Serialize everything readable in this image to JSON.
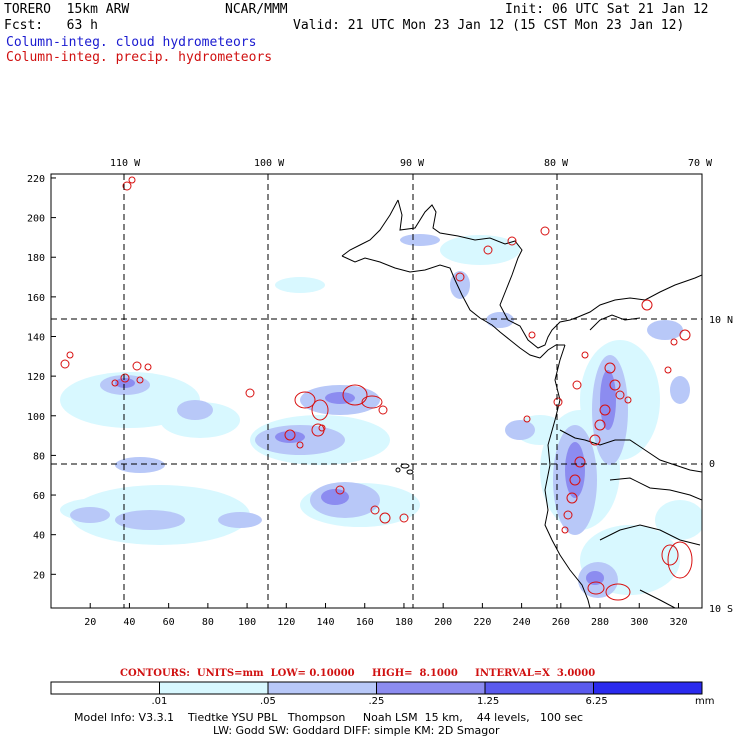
{
  "header": {
    "model": "TORERO  15km ARW",
    "org": "NCAR/MMM",
    "init": "Init: 06 UTC Sat 21 Jan 12",
    "fcst": "Fcst:   63 h",
    "valid": "Valid: 21 UTC Mon 23 Jan 12 (15 CST Mon 23 Jan 12)",
    "field1": "Column-integ. cloud hydrometeors",
    "field2": "Column-integ. precip. hydrometeors"
  },
  "map": {
    "lon_labels": [
      "110 W",
      "100 W",
      "90 W",
      "80 W",
      "70 W"
    ],
    "lat_labels": [
      "10 N",
      "0",
      "10 S"
    ],
    "x_ticks": [
      "20",
      "40",
      "60",
      "80",
      "100",
      "120",
      "140",
      "160",
      "180",
      "200",
      "220",
      "240",
      "260",
      "280",
      "300",
      "320"
    ],
    "y_ticks": [
      "20",
      "40",
      "60",
      "80",
      "100",
      "120",
      "140",
      "160",
      "180",
      "200",
      "220"
    ],
    "x_range": [
      0,
      332
    ],
    "y_range": [
      3,
      222
    ]
  },
  "contours": {
    "text": "CONTOURS:  UNITS=mm  LOW= 0.10000     HIGH=  8.1000     INTERVAL=X  3.0000"
  },
  "legend": {
    "labels": [
      ".01",
      ".05",
      ".25",
      "1.25",
      "6.25"
    ],
    "unit": "mm",
    "colors": [
      "#ffffff",
      "#d8f8ff",
      "#b8c8f8",
      "#8c8cf0",
      "#5a5aee",
      "#2a2aee"
    ]
  },
  "footer": {
    "line1": "Model Info: V3.3.1    Tiedtke YSU PBL   Thompson     Noah LSM  15 km,    44 levels,   100 sec",
    "line2": "LW: Godd SW: Goddard DIFF: simple KM: 2D Smagor"
  }
}
